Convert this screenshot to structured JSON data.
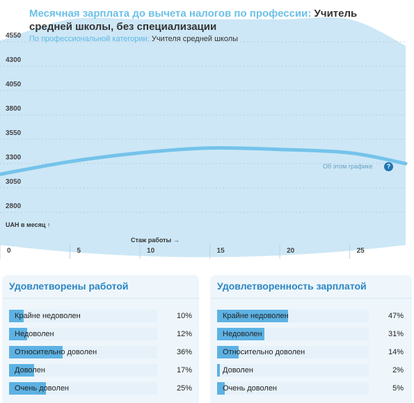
{
  "header": {
    "title_prefix": "Месячная зарплата до вычета налогов по профессии:",
    "title_subject": "Учитель средней школы, без специализации",
    "subtitle_prefix": "По профессиональной категории:",
    "subtitle_subject": "Учителя средней школы"
  },
  "chart_data": {
    "type": "area",
    "x": [
      0,
      5,
      10,
      15,
      20,
      25,
      29
    ],
    "series": [
      {
        "values": [
          3190,
          3320,
          3410,
          3460,
          3445,
          3410,
          3300
        ]
      }
    ],
    "band": {
      "values": [
        4560,
        4780,
        4780,
        4780,
        4780,
        4780,
        4510
      ]
    },
    "x_ticks": [
      "0",
      "5",
      "10",
      "15",
      "20",
      "25"
    ],
    "y_ticks": [
      "4550",
      "4300",
      "4050",
      "3800",
      "3550",
      "3300",
      "3050",
      "2800"
    ],
    "xlabel": "Стаж работы →",
    "ylabel": "UAH в месяц ↑",
    "ylim": [
      2800,
      4550
    ],
    "xlim": [
      0,
      29
    ],
    "annotation": "Об этом графике",
    "colors": {
      "band": "#cde7f6",
      "line": "#74c3ea",
      "grid": "#b8cfdf"
    }
  },
  "panels": [
    {
      "title": "Удовлетворены работой",
      "rows": [
        {
          "label": "Крайне недоволен",
          "pct": "10%",
          "value": 10
        },
        {
          "label": "Недоволен",
          "pct": "12%",
          "value": 12
        },
        {
          "label": "Относительно доволен",
          "pct": "36%",
          "value": 36
        },
        {
          "label": "Доволен",
          "pct": "17%",
          "value": 17
        },
        {
          "label": "Очень доволен",
          "pct": "25%",
          "value": 25
        }
      ]
    },
    {
      "title": "Удовлетворенность зарплатой",
      "rows": [
        {
          "label": "Крайне недоволен",
          "pct": "47%",
          "value": 47
        },
        {
          "label": "Недоволен",
          "pct": "31%",
          "value": 31
        },
        {
          "label": "Относительно доволен",
          "pct": "14%",
          "value": 14
        },
        {
          "label": "Доволен",
          "pct": "2%",
          "value": 2
        },
        {
          "label": "Очень доволен",
          "pct": "5%",
          "value": 5
        }
      ]
    }
  ]
}
